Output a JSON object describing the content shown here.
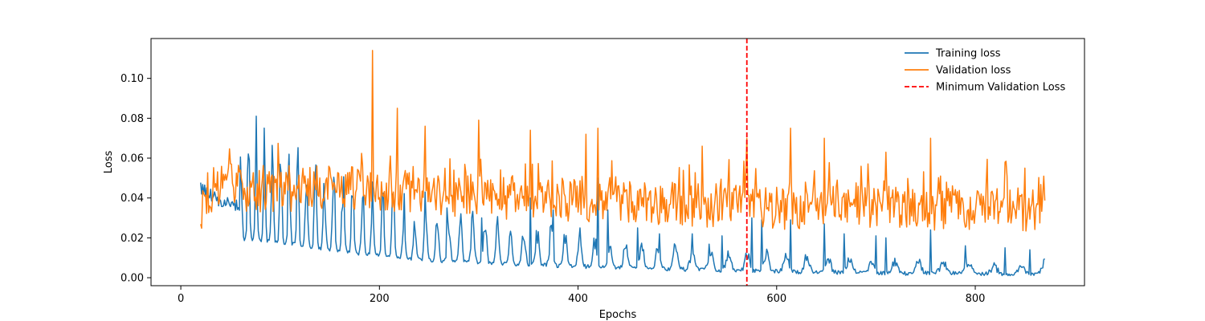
{
  "chart_data": {
    "type": "line",
    "title": "",
    "xlabel": "Epochs",
    "ylabel": "Loss",
    "xlim": [
      -30,
      910
    ],
    "ylim": [
      -0.004,
      0.12
    ],
    "x_ticks": [
      0,
      200,
      400,
      600,
      800
    ],
    "y_ticks": [
      0.0,
      0.02,
      0.04,
      0.06,
      0.08,
      0.1
    ],
    "y_tick_labels": [
      "0.00",
      "0.02",
      "0.04",
      "0.06",
      "0.08",
      "0.10"
    ],
    "grid": false,
    "legend_position": "top-right",
    "series": [
      {
        "name": "Training loss",
        "color": "#1f77b4",
        "style": "solid",
        "x": [
          20,
          40,
          60,
          80,
          100,
          120,
          140,
          160,
          180,
          200,
          220,
          240,
          260,
          280,
          300,
          320,
          340,
          360,
          380,
          400,
          420,
          440,
          460,
          480,
          500,
          520,
          540,
          560,
          580,
          600,
          620,
          640,
          660,
          680,
          700,
          720,
          740,
          760,
          780,
          800,
          820,
          840,
          860,
          870
        ],
        "y": [
          0.045,
          0.038,
          0.036,
          0.034,
          0.032,
          0.03,
          0.027,
          0.025,
          0.022,
          0.02,
          0.018,
          0.016,
          0.015,
          0.014,
          0.014,
          0.013,
          0.012,
          0.012,
          0.011,
          0.01,
          0.01,
          0.009,
          0.009,
          0.008,
          0.008,
          0.007,
          0.007,
          0.006,
          0.006,
          0.006,
          0.005,
          0.005,
          0.005,
          0.005,
          0.004,
          0.004,
          0.004,
          0.004,
          0.004,
          0.004,
          0.003,
          0.003,
          0.003,
          0.008
        ],
        "spike_x": [
          193,
          213,
          246,
          268,
          303,
          352,
          375,
          420,
          430,
          460,
          482,
          515,
          545,
          575,
          585,
          614,
          648,
          668,
          700,
          710,
          755,
          790,
          830,
          855
        ],
        "spike_y": [
          0.048,
          0.042,
          0.043,
          0.035,
          0.03,
          0.04,
          0.034,
          0.05,
          0.034,
          0.025,
          0.022,
          0.022,
          0.021,
          0.03,
          0.029,
          0.029,
          0.027,
          0.022,
          0.021,
          0.02,
          0.024,
          0.016,
          0.015,
          0.014
        ]
      },
      {
        "name": "Validation loss",
        "color": "#ff7f0e",
        "style": "solid",
        "x": [
          20,
          40,
          60,
          80,
          100,
          120,
          140,
          160,
          180,
          200,
          220,
          240,
          260,
          280,
          300,
          320,
          340,
          360,
          380,
          400,
          420,
          440,
          460,
          480,
          500,
          520,
          540,
          560,
          580,
          600,
          620,
          640,
          660,
          680,
          700,
          720,
          740,
          760,
          780,
          800,
          820,
          840,
          860,
          870
        ],
        "y": [
          0.031,
          0.042,
          0.041,
          0.04,
          0.04,
          0.041,
          0.042,
          0.042,
          0.041,
          0.04,
          0.04,
          0.039,
          0.039,
          0.038,
          0.038,
          0.037,
          0.037,
          0.036,
          0.036,
          0.035,
          0.035,
          0.035,
          0.034,
          0.034,
          0.034,
          0.033,
          0.033,
          0.033,
          0.033,
          0.032,
          0.032,
          0.032,
          0.032,
          0.032,
          0.032,
          0.032,
          0.031,
          0.031,
          0.031,
          0.031,
          0.031,
          0.031,
          0.031,
          0.038
        ],
        "spike_x": [
          193,
          218,
          246,
          300,
          352,
          408,
          420,
          525,
          570,
          614,
          648,
          710,
          755,
          830,
          850
        ],
        "spike_y": [
          0.114,
          0.085,
          0.076,
          0.079,
          0.074,
          0.072,
          0.075,
          0.066,
          0.07,
          0.075,
          0.07,
          0.063,
          0.07,
          0.058,
          0.055
        ]
      },
      {
        "name": "Minimum Validation Loss",
        "color": "#ff0000",
        "style": "dashed",
        "type": "vline",
        "x": 570
      }
    ]
  }
}
